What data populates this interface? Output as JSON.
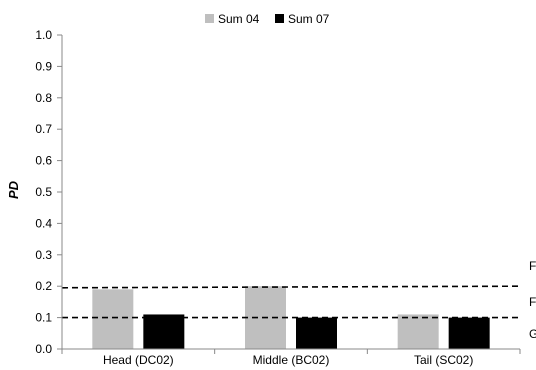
{
  "chart_data": {
    "type": "bar",
    "title": "",
    "xlabel": "",
    "ylabel": "PD",
    "ylim": [
      0,
      1.0
    ],
    "yticks": [
      "0.0",
      "0.1",
      "0.2",
      "0.3",
      "0.4",
      "0.5",
      "0.6",
      "0.7",
      "0.8",
      "0.9",
      "1.0"
    ],
    "grid": false,
    "legend_position": "top",
    "categories": [
      "Head (DC02)",
      "Middle (BC02)",
      "Tail (SC02)"
    ],
    "series": [
      {
        "name": "Sum 04",
        "color": "#bfbfbf",
        "values": [
          0.19,
          0.2,
          0.11
        ]
      },
      {
        "name": "Sum 07",
        "color": "#000000",
        "values": [
          0.11,
          0.1,
          0.1
        ]
      }
    ],
    "reference_lines": [
      {
        "label": "F",
        "style": "dashed",
        "start": 0.195,
        "end": 0.2
      },
      {
        "label": "F",
        "style": "dashed",
        "start": 0.1,
        "end": 0.1
      }
    ],
    "right_edge_labels": [
      "F",
      "F",
      "G"
    ]
  }
}
